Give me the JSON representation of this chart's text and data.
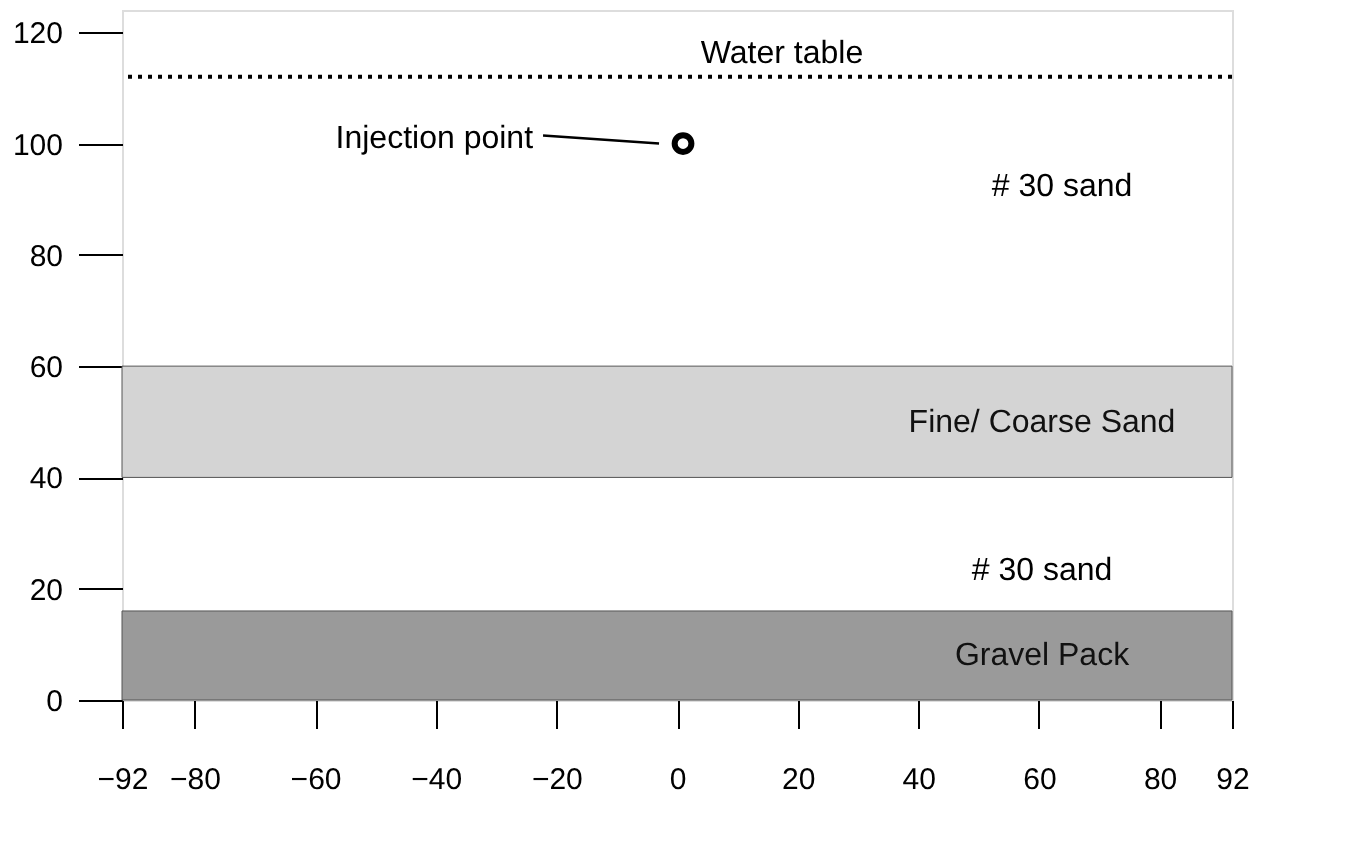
{
  "chart_data": {
    "type": "scatter",
    "series": [
      {
        "color": "#000000",
        "x": [
          1
        ],
        "values": [
          100
        ]
      }
    ],
    "marker": "circle",
    "xlim": [
      -92,
      92
    ],
    "xticks": [
      -92,
      -80,
      -60,
      -40,
      -20,
      0,
      20,
      40,
      60,
      80,
      92
    ],
    "ylim": [
      0,
      124
    ],
    "yticks": [
      0,
      20,
      40,
      60,
      80,
      100,
      120
    ],
    "grid": false,
    "ref_lines": [
      {
        "axis": "y",
        "value": 112,
        "label": "Water table",
        "color": "#000000",
        "line_style": "dotted"
      }
    ],
    "bands": [
      {
        "axis": "y",
        "from": 40,
        "to": 60,
        "label": "Fine/ Coarse Sand",
        "color": "#d4d4d4"
      },
      {
        "axis": "y",
        "from": 0,
        "to": 16,
        "label": "Gravel Pack",
        "color": "#9a9a9a"
      }
    ],
    "annotations": [
      "Injection point",
      "# 30 sand",
      "# 30 sand"
    ]
  }
}
